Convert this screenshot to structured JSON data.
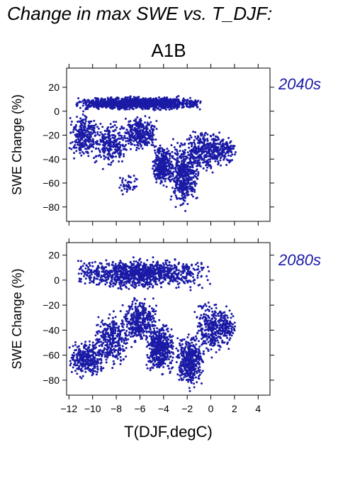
{
  "figure": {
    "title": "Change in max SWE vs. T_DJF:",
    "scenario": "A1B"
  },
  "colors": {
    "points": "#1a1aa6",
    "period_label": "#1a1aa6",
    "frame": "#000000"
  },
  "chart_data": [
    {
      "type": "scatter",
      "period": "2040s",
      "ylabel": "SWE Change (%)",
      "xlim": [
        -12.2,
        5
      ],
      "ylim": [
        -92,
        36
      ],
      "yticks": [
        20,
        0,
        -20,
        -40,
        -60,
        -80
      ],
      "xticks": [
        -12,
        -10,
        -8,
        -6,
        -4,
        -2,
        0,
        2,
        4
      ],
      "x_tick_labels_shown": false,
      "clusters": [
        {
          "x": [
            -11.5,
            -0.5
          ],
          "y": [
            0,
            13
          ],
          "n": 1400
        },
        {
          "x": [
            -12,
            -9.5
          ],
          "y": [
            -45,
            5
          ],
          "n": 260
        },
        {
          "x": [
            -10,
            -7
          ],
          "y": [
            -50,
            -5
          ],
          "n": 260
        },
        {
          "x": [
            -7.5,
            -4.5
          ],
          "y": [
            -35,
            0
          ],
          "n": 320
        },
        {
          "x": [
            -5,
            -3
          ],
          "y": [
            -67,
            -25
          ],
          "n": 340
        },
        {
          "x": [
            -3.5,
            -1
          ],
          "y": [
            -86,
            -20
          ],
          "n": 460
        },
        {
          "x": [
            -2,
            1
          ],
          "y": [
            -55,
            -10
          ],
          "n": 300
        },
        {
          "x": [
            0,
            2.2
          ],
          "y": [
            -48,
            -15
          ],
          "n": 140
        },
        {
          "x": [
            -8,
            -6
          ],
          "y": [
            -72,
            -50
          ],
          "n": 45
        }
      ]
    },
    {
      "type": "scatter",
      "period": "2080s",
      "ylabel": "SWE Change (%)",
      "xlabel": "T(DJF,degC)",
      "xlim": [
        -12.2,
        5
      ],
      "ylim": [
        -92,
        30
      ],
      "yticks": [
        20,
        0,
        -20,
        -40,
        -60,
        -80
      ],
      "xticks": [
        -12,
        -10,
        -8,
        -6,
        -4,
        -2,
        0,
        2,
        4
      ],
      "x_tick_labels": [
        "−12",
        "−10",
        "−8",
        "−6",
        "−4",
        "−2",
        "0",
        "2",
        "4"
      ],
      "clusters": [
        {
          "x": [
            -11.5,
            0
          ],
          "y": [
            -10,
            20
          ],
          "n": 1100
        },
        {
          "x": [
            -12,
            -9
          ],
          "y": [
            -80,
            -45
          ],
          "n": 300
        },
        {
          "x": [
            -10,
            -7
          ],
          "y": [
            -75,
            -20
          ],
          "n": 320
        },
        {
          "x": [
            -7.5,
            -4.5
          ],
          "y": [
            -55,
            -10
          ],
          "n": 380
        },
        {
          "x": [
            -5.5,
            -3
          ],
          "y": [
            -80,
            -30
          ],
          "n": 420
        },
        {
          "x": [
            -3,
            -0.5
          ],
          "y": [
            -90,
            -40
          ],
          "n": 420
        },
        {
          "x": [
            -1.5,
            1.8
          ],
          "y": [
            -65,
            -10
          ],
          "n": 320
        },
        {
          "x": [
            0.5,
            2.2
          ],
          "y": [
            -50,
            -25
          ],
          "n": 80
        }
      ]
    }
  ]
}
